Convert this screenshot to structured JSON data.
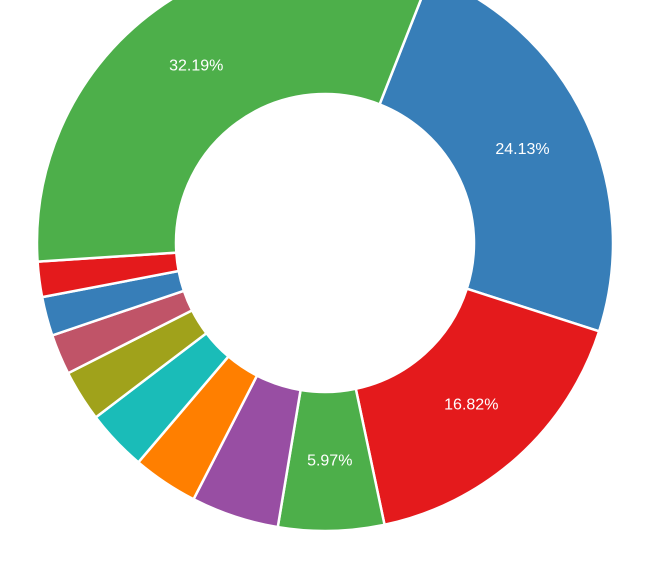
{
  "chart_data": {
    "type": "pie",
    "variant": "donut",
    "start_angle_deg": 21.5,
    "slices": [
      {
        "value": 24.13,
        "label": "24.13%",
        "color": "#377eb8"
      },
      {
        "value": 16.82,
        "label": "16.82%",
        "color": "#e41a1c"
      },
      {
        "value": 5.97,
        "label": "5.97%",
        "color": "#4daf4a"
      },
      {
        "value": 4.95,
        "label": "",
        "color": "#984ea3"
      },
      {
        "value": 3.7,
        "label": "",
        "color": "#ff7f00"
      },
      {
        "value": 3.45,
        "label": "",
        "color": "#1abcb8"
      },
      {
        "value": 2.9,
        "label": "",
        "color": "#a0a21b"
      },
      {
        "value": 2.28,
        "label": "",
        "color": "#c05468"
      },
      {
        "value": 2.2,
        "label": "",
        "color": "#377eb8"
      },
      {
        "value": 1.99,
        "label": "",
        "color": "#e41a1c"
      },
      {
        "value": 32.19,
        "label": "32.19%",
        "color": "#4daf4a"
      }
    ]
  }
}
